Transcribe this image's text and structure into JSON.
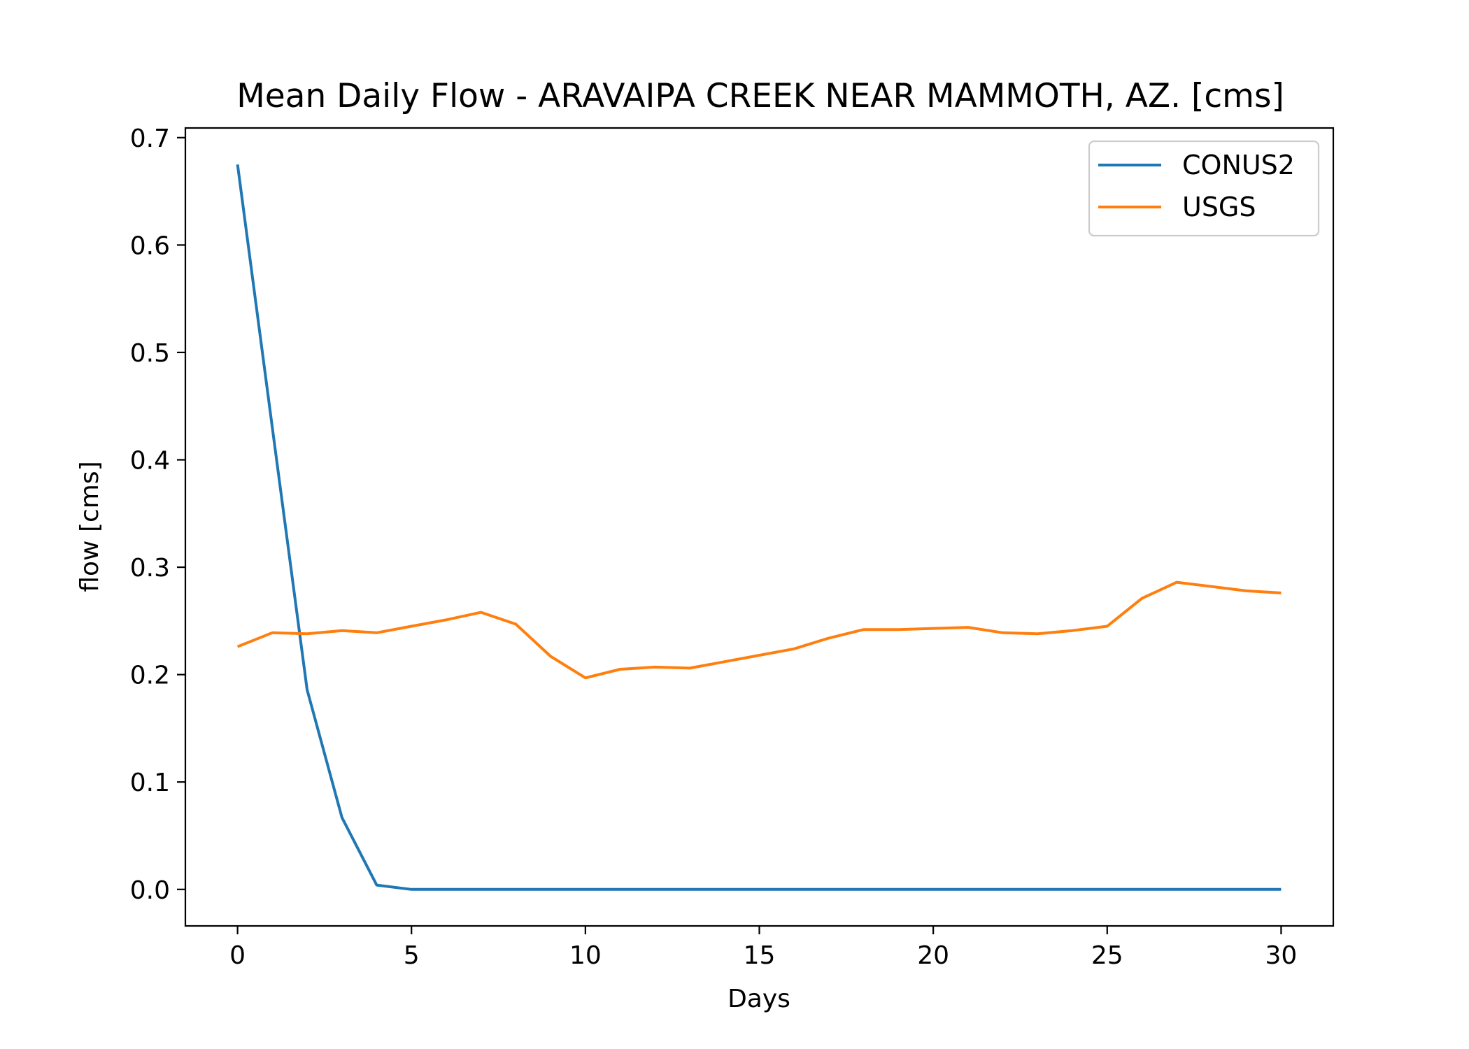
{
  "chart_data": {
    "type": "line",
    "title": "Mean Daily Flow - ARAVAIPA CREEK NEAR MAMMOTH, AZ. [cms]",
    "xlabel": "Days",
    "ylabel": "flow [cms]",
    "xlim": [
      -1.5,
      31.5
    ],
    "ylim": [
      -0.034,
      0.709
    ],
    "xticks": [
      0,
      5,
      10,
      15,
      20,
      25,
      30
    ],
    "yticks": [
      0.0,
      0.1,
      0.2,
      0.3,
      0.4,
      0.5,
      0.6,
      0.7
    ],
    "ytick_labels": [
      "0.0",
      "0.1",
      "0.2",
      "0.3",
      "0.4",
      "0.5",
      "0.6",
      "0.7"
    ],
    "grid": false,
    "legend_position": "upper-right",
    "x": [
      0,
      1,
      2,
      3,
      4,
      5,
      6,
      7,
      8,
      9,
      10,
      11,
      12,
      13,
      14,
      15,
      16,
      17,
      18,
      19,
      20,
      21,
      22,
      23,
      24,
      25,
      26,
      27,
      28,
      29,
      30
    ],
    "series": [
      {
        "name": "CONUS2",
        "color": "#1f77b4",
        "values": [
          0.675,
          0.43,
          0.186,
          0.067,
          0.004,
          0.0,
          0.0,
          0.0,
          0.0,
          0.0,
          0.0,
          0.0,
          0.0,
          0.0,
          0.0,
          0.0,
          0.0,
          0.0,
          0.0,
          0.0,
          0.0,
          0.0,
          0.0,
          0.0,
          0.0,
          0.0,
          0.0,
          0.0,
          0.0,
          0.0,
          0.0
        ]
      },
      {
        "name": "USGS",
        "color": "#ff7f0e",
        "values": [
          0.226,
          0.239,
          0.238,
          0.241,
          0.239,
          0.245,
          0.251,
          0.258,
          0.247,
          0.217,
          0.197,
          0.205,
          0.207,
          0.206,
          0.212,
          0.218,
          0.224,
          0.234,
          0.242,
          0.242,
          0.243,
          0.244,
          0.239,
          0.238,
          0.241,
          0.245,
          0.271,
          0.286,
          0.282,
          0.278,
          0.276
        ]
      }
    ]
  }
}
